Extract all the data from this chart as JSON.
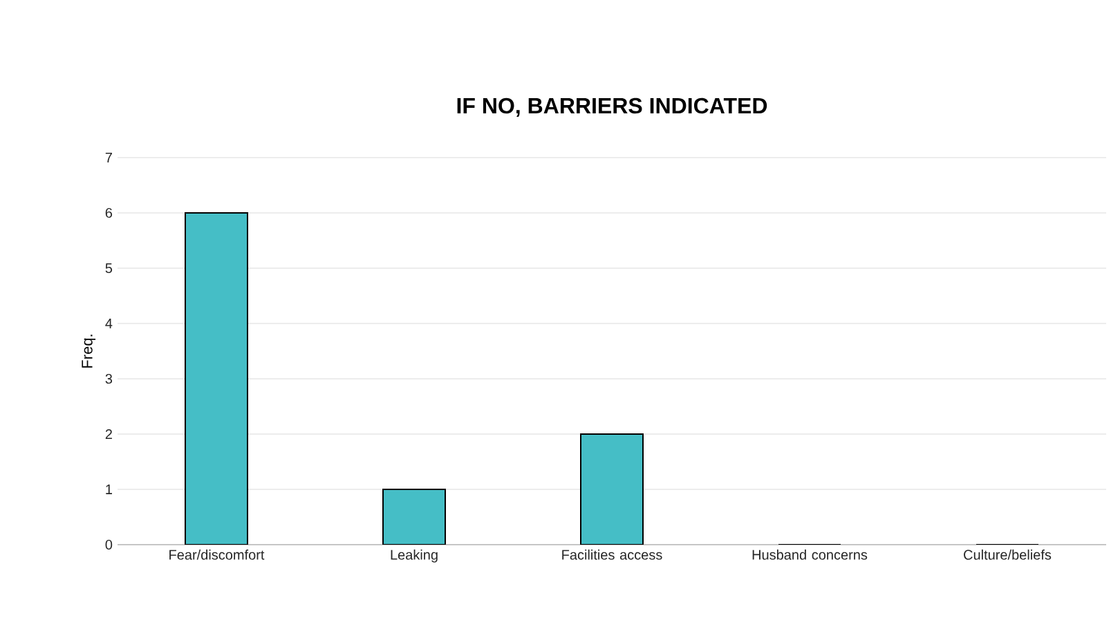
{
  "chart_data": {
    "type": "bar",
    "title": "IF NO, BARRIERS INDICATED",
    "ylabel": "Freq.",
    "categories": [
      "Fear/discomfort",
      "Leaking",
      "Facilities access",
      "Husband concerns",
      "Culture/beliefs"
    ],
    "values": [
      6,
      1,
      2,
      0,
      0
    ],
    "color": "#45bec6",
    "ylim": [
      0,
      7
    ],
    "yticks": [
      0,
      1,
      2,
      3,
      4,
      5,
      6,
      7
    ],
    "grid": "y"
  }
}
